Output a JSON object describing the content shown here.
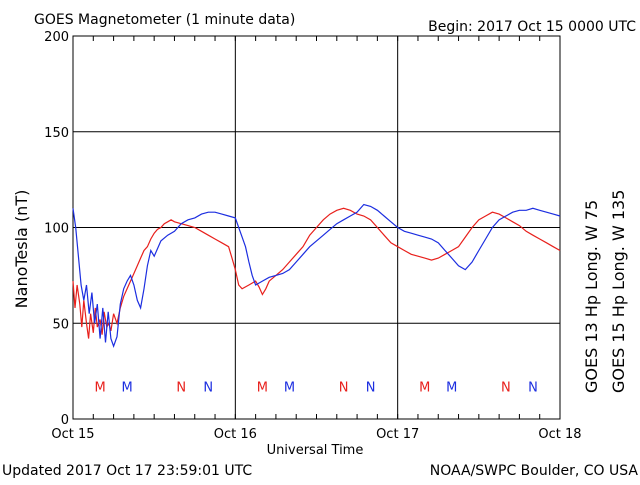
{
  "chart_data": {
    "type": "line",
    "title": "GOES Magnetometer (1 minute data)",
    "begin_label": "Begin:  2017 Oct 15 0000 UTC",
    "ylabel": "NanoTesla (nT)",
    "xlabel": "Universal Time",
    "footer_left": "Updated 2017 Oct 17 23:59:01 UTC",
    "footer_right": "NOAA/SWPC Boulder, CO USA",
    "ylim": [
      0,
      200
    ],
    "xlim_hours": [
      0,
      72
    ],
    "y_ticks": [
      0,
      50,
      100,
      150,
      200
    ],
    "x_ticks": [
      {
        "hour": 0,
        "label": "Oct 15"
      },
      {
        "hour": 24,
        "label": "Oct 16"
      },
      {
        "hour": 48,
        "label": "Oct 17"
      },
      {
        "hour": 72,
        "label": "Oct 18"
      }
    ],
    "grid": true,
    "series": [
      {
        "name": "GOES 13 Hp  Long. W 75",
        "color": "#e8201c",
        "points": [
          [
            0,
            72
          ],
          [
            0.3,
            58
          ],
          [
            0.6,
            70
          ],
          [
            1,
            60
          ],
          [
            1.3,
            48
          ],
          [
            1.6,
            62
          ],
          [
            2,
            50
          ],
          [
            2.3,
            42
          ],
          [
            2.6,
            55
          ],
          [
            3,
            45
          ],
          [
            3.3,
            58
          ],
          [
            3.6,
            48
          ],
          [
            4,
            52
          ],
          [
            4.3,
            44
          ],
          [
            4.6,
            56
          ],
          [
            5,
            48
          ],
          [
            5.3,
            50
          ],
          [
            5.6,
            46
          ],
          [
            6,
            55
          ],
          [
            6.5,
            50
          ],
          [
            7,
            58
          ],
          [
            7.5,
            64
          ],
          [
            8,
            68
          ],
          [
            8.5,
            72
          ],
          [
            9,
            76
          ],
          [
            9.5,
            80
          ],
          [
            10,
            84
          ],
          [
            10.5,
            88
          ],
          [
            11,
            90
          ],
          [
            11.5,
            94
          ],
          [
            12,
            97
          ],
          [
            12.5,
            99
          ],
          [
            13,
            100
          ],
          [
            13.5,
            102
          ],
          [
            14,
            103
          ],
          [
            14.5,
            104
          ],
          [
            15,
            103
          ],
          [
            16,
            102
          ],
          [
            17,
            101
          ],
          [
            18,
            100
          ],
          [
            19,
            98
          ],
          [
            20,
            96
          ],
          [
            21,
            94
          ],
          [
            22,
            92
          ],
          [
            23,
            90
          ],
          [
            23.5,
            84
          ],
          [
            24,
            78
          ],
          [
            24.5,
            70
          ],
          [
            25,
            68
          ],
          [
            26,
            70
          ],
          [
            27,
            72
          ],
          [
            27.5,
            69
          ],
          [
            28,
            65
          ],
          [
            28.5,
            68
          ],
          [
            29,
            72
          ],
          [
            30,
            75
          ],
          [
            31,
            78
          ],
          [
            32,
            82
          ],
          [
            33,
            86
          ],
          [
            34,
            90
          ],
          [
            35,
            96
          ],
          [
            36,
            100
          ],
          [
            37,
            104
          ],
          [
            38,
            107
          ],
          [
            39,
            109
          ],
          [
            40,
            110
          ],
          [
            41,
            109
          ],
          [
            42,
            107
          ],
          [
            43,
            106
          ],
          [
            44,
            104
          ],
          [
            45,
            100
          ],
          [
            46,
            96
          ],
          [
            47,
            92
          ],
          [
            48,
            90
          ],
          [
            49,
            88
          ],
          [
            50,
            86
          ],
          [
            51,
            85
          ],
          [
            52,
            84
          ],
          [
            53,
            83
          ],
          [
            54,
            84
          ],
          [
            55,
            86
          ],
          [
            56,
            88
          ],
          [
            57,
            90
          ],
          [
            58,
            95
          ],
          [
            59,
            100
          ],
          [
            60,
            104
          ],
          [
            61,
            106
          ],
          [
            62,
            108
          ],
          [
            63,
            107
          ],
          [
            64,
            105
          ],
          [
            65,
            103
          ],
          [
            66,
            101
          ],
          [
            67,
            98
          ],
          [
            68,
            96
          ],
          [
            69,
            94
          ],
          [
            70,
            92
          ],
          [
            71,
            90
          ],
          [
            72,
            88
          ]
        ]
      },
      {
        "name": "GOES 15 Hp  Long. W 135",
        "color": "#1c2ee0",
        "points": [
          [
            0,
            110
          ],
          [
            0.4,
            100
          ],
          [
            0.8,
            85
          ],
          [
            1.2,
            70
          ],
          [
            1.6,
            62
          ],
          [
            2,
            70
          ],
          [
            2.4,
            55
          ],
          [
            2.8,
            66
          ],
          [
            3.2,
            50
          ],
          [
            3.6,
            60
          ],
          [
            4,
            42
          ],
          [
            4.4,
            58
          ],
          [
            4.8,
            40
          ],
          [
            5.2,
            56
          ],
          [
            5.6,
            42
          ],
          [
            6,
            38
          ],
          [
            6.5,
            43
          ],
          [
            7,
            60
          ],
          [
            7.5,
            68
          ],
          [
            8,
            72
          ],
          [
            8.5,
            75
          ],
          [
            9,
            70
          ],
          [
            9.5,
            62
          ],
          [
            10,
            58
          ],
          [
            10.5,
            68
          ],
          [
            11,
            80
          ],
          [
            11.5,
            88
          ],
          [
            12,
            85
          ],
          [
            13,
            93
          ],
          [
            14,
            96
          ],
          [
            15,
            98
          ],
          [
            16,
            102
          ],
          [
            17,
            104
          ],
          [
            18,
            105
          ],
          [
            19,
            107
          ],
          [
            20,
            108
          ],
          [
            21,
            108
          ],
          [
            22,
            107
          ],
          [
            23,
            106
          ],
          [
            24,
            105
          ],
          [
            24.5,
            100
          ],
          [
            25,
            95
          ],
          [
            25.5,
            90
          ],
          [
            26,
            82
          ],
          [
            26.5,
            75
          ],
          [
            27,
            70
          ],
          [
            28,
            72
          ],
          [
            29,
            74
          ],
          [
            30,
            75
          ],
          [
            31,
            76
          ],
          [
            32,
            78
          ],
          [
            33,
            82
          ],
          [
            34,
            86
          ],
          [
            35,
            90
          ],
          [
            36,
            93
          ],
          [
            37,
            96
          ],
          [
            38,
            99
          ],
          [
            39,
            102
          ],
          [
            40,
            104
          ],
          [
            41,
            106
          ],
          [
            42,
            108
          ],
          [
            43,
            112
          ],
          [
            44,
            111
          ],
          [
            45,
            109
          ],
          [
            46,
            106
          ],
          [
            47,
            103
          ],
          [
            48,
            100
          ],
          [
            49,
            98
          ],
          [
            50,
            97
          ],
          [
            51,
            96
          ],
          [
            52,
            95
          ],
          [
            53,
            94
          ],
          [
            54,
            92
          ],
          [
            55,
            88
          ],
          [
            56,
            84
          ],
          [
            57,
            80
          ],
          [
            58,
            78
          ],
          [
            59,
            82
          ],
          [
            60,
            88
          ],
          [
            61,
            94
          ],
          [
            62,
            100
          ],
          [
            63,
            104
          ],
          [
            64,
            106
          ],
          [
            65,
            108
          ],
          [
            66,
            109
          ],
          [
            67,
            109
          ],
          [
            68,
            110
          ],
          [
            69,
            109
          ],
          [
            70,
            108
          ],
          [
            71,
            107
          ],
          [
            72,
            106
          ]
        ]
      }
    ],
    "markers": [
      {
        "label": "M",
        "hour": 4,
        "color": "#e8201c"
      },
      {
        "label": "M",
        "hour": 8,
        "color": "#1c2ee0"
      },
      {
        "label": "N",
        "hour": 16,
        "color": "#e8201c"
      },
      {
        "label": "N",
        "hour": 20,
        "color": "#1c2ee0"
      },
      {
        "label": "M",
        "hour": 28,
        "color": "#e8201c"
      },
      {
        "label": "M",
        "hour": 32,
        "color": "#1c2ee0"
      },
      {
        "label": "N",
        "hour": 40,
        "color": "#e8201c"
      },
      {
        "label": "N",
        "hour": 44,
        "color": "#1c2ee0"
      },
      {
        "label": "M",
        "hour": 52,
        "color": "#e8201c"
      },
      {
        "label": "M",
        "hour": 56,
        "color": "#1c2ee0"
      },
      {
        "label": "N",
        "hour": 64,
        "color": "#e8201c"
      },
      {
        "label": "N",
        "hour": 68,
        "color": "#1c2ee0"
      }
    ],
    "marker_value": 17
  }
}
